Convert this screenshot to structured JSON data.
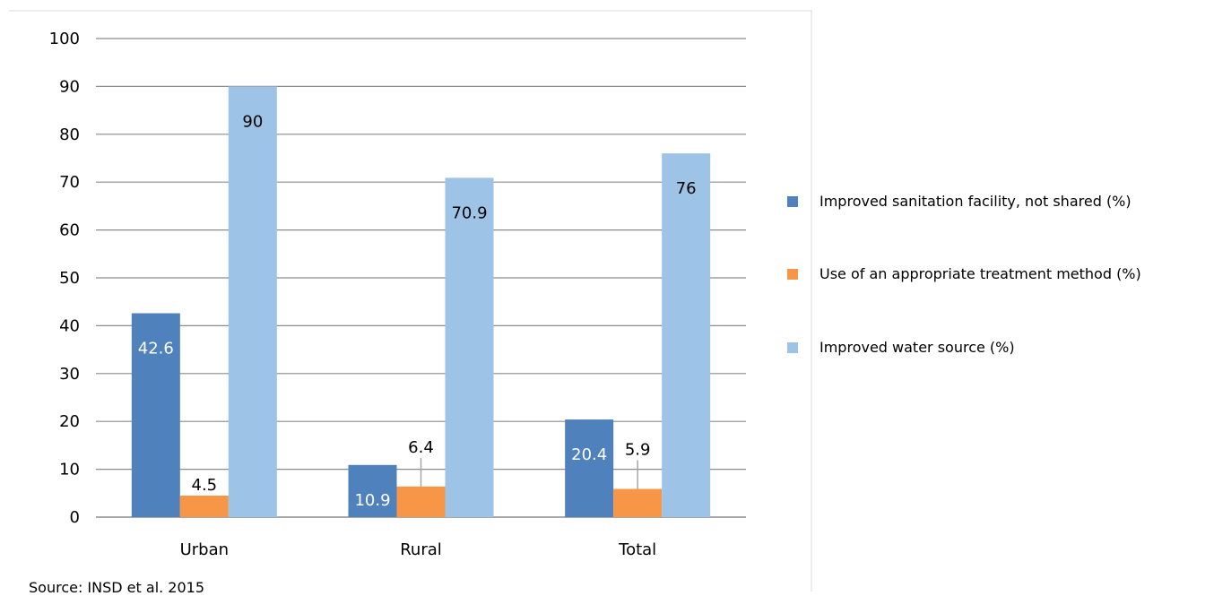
{
  "chart_data": {
    "type": "bar",
    "categories": [
      "Urban",
      "Rural",
      "Total"
    ],
    "series": [
      {
        "name": "Improved sanitation facility, not shared (%)",
        "values": [
          42.6,
          10.9,
          20.4
        ],
        "color": "#4f81bd",
        "label_color": "#ffffff"
      },
      {
        "name": "Use of an appropriate treatment method (%)",
        "values": [
          4.5,
          6.4,
          5.9
        ],
        "color": "#f79646",
        "label_color": "#000000"
      },
      {
        "name": "Improved water source (%)",
        "values": [
          90,
          70.9,
          76
        ],
        "color": "#9dc3e6",
        "label_color": "#000000"
      }
    ],
    "data_labels": [
      [
        "42.6",
        "10.9",
        "20.4"
      ],
      [
        "4.5",
        "6.4",
        "5.9"
      ],
      [
        "90",
        "70.9",
        "76"
      ]
    ],
    "yticks": [
      "0",
      "10",
      "20",
      "30",
      "40",
      "50",
      "60",
      "70",
      "80",
      "90",
      "100"
    ],
    "ylim": [
      0,
      100
    ],
    "grid": true,
    "legend_position": "right"
  },
  "source_note": "Source: INSD et al. 2015"
}
